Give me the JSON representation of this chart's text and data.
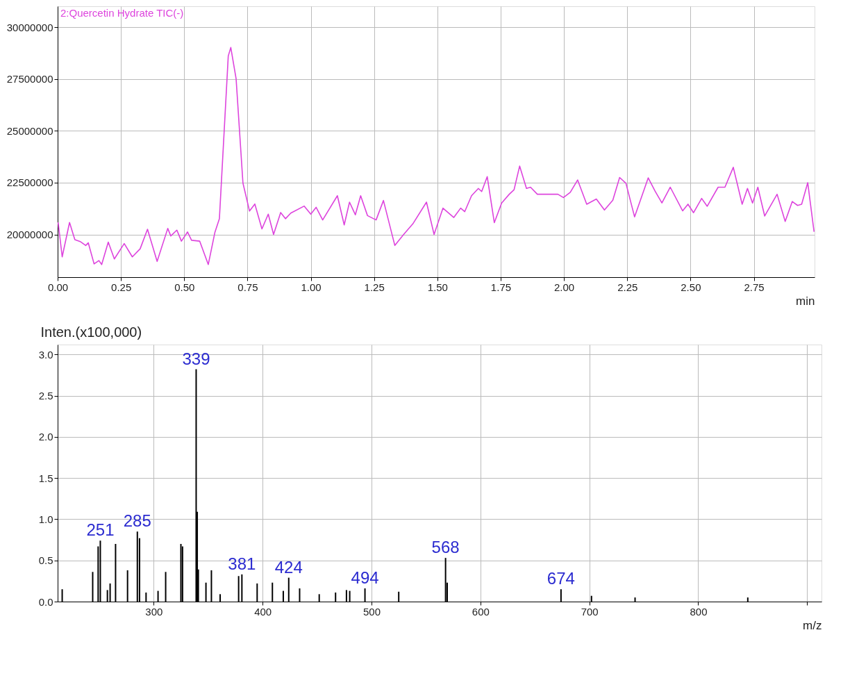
{
  "chart_data": [
    {
      "type": "line",
      "xlabel": "min",
      "xlim": [
        0,
        2.99
      ],
      "ylim": [
        17940000,
        31010000
      ],
      "grid": true,
      "marker": "none",
      "line_style": "solid",
      "xticks": [
        {
          "value": 0,
          "label": "0.00"
        },
        {
          "value": 0.25,
          "label": "0.25"
        },
        {
          "value": 0.5,
          "label": "0.50"
        },
        {
          "value": 0.75,
          "label": "0.75"
        },
        {
          "value": 1,
          "label": "1.00"
        },
        {
          "value": 1.25,
          "label": "1.25"
        },
        {
          "value": 1.5,
          "label": "1.50"
        },
        {
          "value": 1.75,
          "label": "1.75"
        },
        {
          "value": 2,
          "label": "2.00"
        },
        {
          "value": 2.25,
          "label": "2.25"
        },
        {
          "value": 2.5,
          "label": "2.50"
        },
        {
          "value": 2.75,
          "label": "2.75"
        }
      ],
      "yticks": [
        20000000,
        22500000,
        25000000,
        27500000,
        30000000
      ],
      "series": [
        {
          "name": "2:Quercetin Hydrate TIC(-)",
          "color": "#dd44dd",
          "x": [
            0.002,
            0.018,
            0.047,
            0.068,
            0.089,
            0.111,
            0.121,
            0.144,
            0.163,
            0.174,
            0.2,
            0.224,
            0.263,
            0.295,
            0.326,
            0.355,
            0.393,
            0.435,
            0.447,
            0.471,
            0.489,
            0.513,
            0.529,
            0.561,
            0.595,
            0.621,
            0.639,
            0.674,
            0.684,
            0.705,
            0.732,
            0.758,
            0.779,
            0.807,
            0.832,
            0.853,
            0.881,
            0.9,
            0.921,
            0.974,
            1.0,
            1.021,
            1.047,
            1.105,
            1.132,
            1.153,
            1.176,
            1.197,
            1.224,
            1.258,
            1.287,
            1.332,
            1.368,
            1.403,
            1.457,
            1.487,
            1.522,
            1.565,
            1.592,
            1.608,
            1.635,
            1.662,
            1.675,
            1.697,
            1.725,
            1.754,
            1.784,
            1.803,
            1.825,
            1.852,
            1.868,
            1.895,
            1.976,
            1.998,
            2.025,
            2.054,
            2.09,
            2.128,
            2.16,
            2.193,
            2.22,
            2.245,
            2.279,
            2.333,
            2.36,
            2.387,
            2.42,
            2.469,
            2.49,
            2.512,
            2.544,
            2.566,
            2.609,
            2.636,
            2.669,
            2.704,
            2.725,
            2.745,
            2.766,
            2.793,
            2.842,
            2.874,
            2.902,
            2.923,
            2.939,
            2.963,
            2.988
          ],
          "values": [
            20580000,
            18920000,
            20580000,
            19750000,
            19660000,
            19470000,
            19600000,
            18580000,
            18740000,
            18550000,
            19630000,
            18820000,
            19560000,
            18920000,
            19310000,
            20250000,
            18700000,
            20290000,
            19930000,
            20210000,
            19680000,
            20120000,
            19720000,
            19680000,
            18550000,
            20090000,
            20760000,
            28610000,
            29020000,
            27510000,
            22480000,
            21130000,
            21470000,
            20270000,
            20980000,
            20000000,
            21060000,
            20760000,
            21030000,
            21370000,
            20980000,
            21310000,
            20700000,
            21870000,
            20460000,
            21560000,
            20950000,
            21870000,
            20910000,
            20700000,
            21640000,
            19470000,
            20020000,
            20510000,
            21560000,
            20000000,
            21270000,
            20820000,
            21270000,
            21100000,
            21870000,
            22220000,
            22070000,
            22790000,
            20570000,
            21520000,
            21940000,
            22160000,
            23300000,
            22220000,
            22280000,
            21940000,
            21940000,
            21780000,
            22030000,
            22630000,
            21460000,
            21710000,
            21180000,
            21650000,
            22750000,
            22470000,
            20850000,
            22730000,
            22090000,
            21520000,
            22280000,
            21140000,
            21460000,
            21050000,
            21740000,
            21360000,
            22280000,
            22280000,
            23240000,
            21460000,
            22220000,
            21520000,
            22280000,
            20890000,
            21940000,
            20630000,
            21590000,
            21400000,
            21460000,
            22500000,
            20130000
          ]
        }
      ]
    },
    {
      "type": "bar",
      "xlabel": "m/z",
      "ylabel": "Inten.(x100,000)",
      "xlim": [
        215,
        910
      ],
      "ylim": [
        0,
        3.12
      ],
      "grid": true,
      "xticks": [
        300,
        400,
        500,
        600,
        700,
        800,
        {
          "value": 900,
          "label": null
        }
      ],
      "yticks": [
        {
          "value": 0,
          "label": "0.0"
        },
        {
          "value": 0.5,
          "label": "0.5"
        },
        {
          "value": 1,
          "label": "1.0"
        },
        {
          "value": 1.5,
          "label": "1.5"
        },
        {
          "value": 2,
          "label": "2.0"
        },
        {
          "value": 2.5,
          "label": "2.5"
        },
        {
          "value": 3,
          "label": "3.0"
        }
      ],
      "series": [
        {
          "color": "#000000",
          "x": [
            216,
            244,
            249,
            251,
            257.5,
            260,
            265,
            276,
            285,
            287,
            293,
            304,
            311,
            325,
            326.5,
            339,
            340,
            341,
            348,
            353,
            361,
            378,
            381,
            395,
            409,
            419,
            424,
            434,
            452,
            467,
            477,
            480,
            494,
            525,
            568,
            569.5,
            674,
            702,
            742,
            845.5
          ],
          "values": [
            0.15,
            0.36,
            0.67,
            0.74,
            0.14,
            0.22,
            0.7,
            0.38,
            0.85,
            0.77,
            0.11,
            0.13,
            0.36,
            0.7,
            0.67,
            2.82,
            1.09,
            0.39,
            0.23,
            0.38,
            0.09,
            0.31,
            0.33,
            0.22,
            0.23,
            0.13,
            0.29,
            0.16,
            0.09,
            0.11,
            0.14,
            0.13,
            0.16,
            0.12,
            0.53,
            0.23,
            0.15,
            0.07,
            0.05,
            0.05
          ]
        }
      ],
      "annotations": [
        {
          "text": "251",
          "x": 251,
          "y": 0.74
        },
        {
          "text": "285",
          "x": 285,
          "y": 0.85
        },
        {
          "text": "339",
          "x": 339,
          "y": 2.82
        },
        {
          "text": "381",
          "x": 381,
          "y": 0.33
        },
        {
          "text": "424",
          "x": 424,
          "y": 0.29
        },
        {
          "text": "494",
          "x": 494,
          "y": 0.16
        },
        {
          "text": "568",
          "x": 568,
          "y": 0.53
        },
        {
          "text": "674",
          "x": 674,
          "y": 0.15
        }
      ]
    }
  ]
}
